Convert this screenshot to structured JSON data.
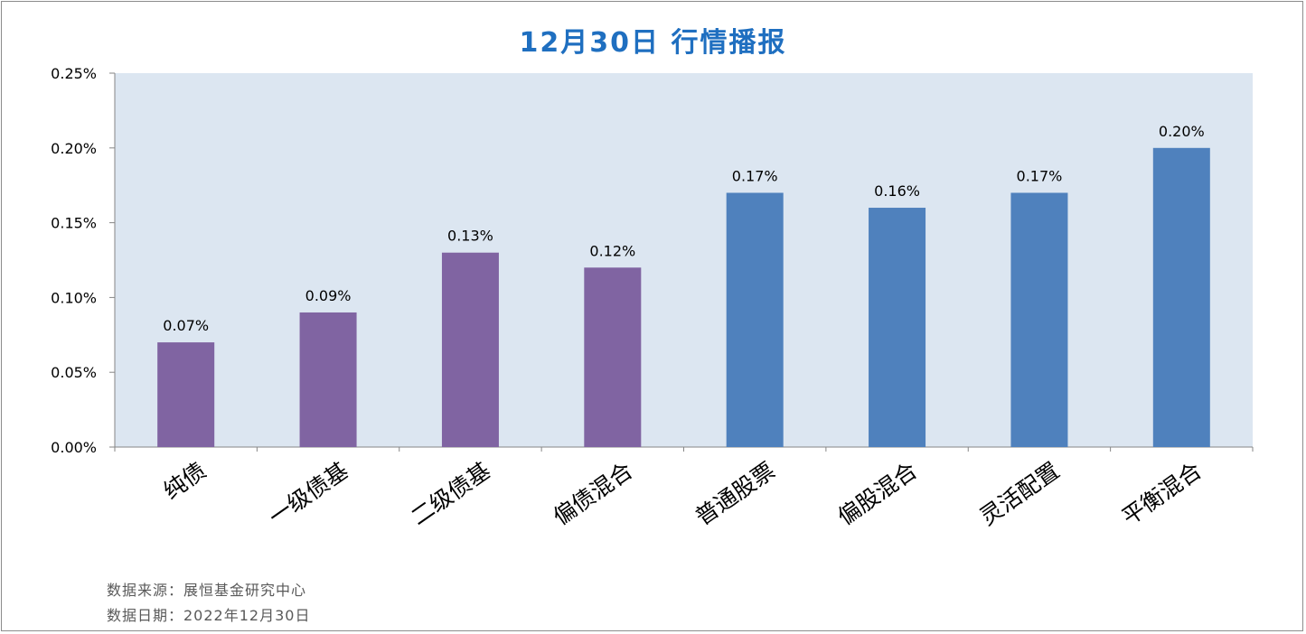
{
  "title": "12月30日  行情播报",
  "source_line": "数据来源：展恒基金研究中心",
  "date_line": "数据日期：2022年12月30日",
  "colors": {
    "plot_bg": "#dce6f1",
    "bond": "#8064a2",
    "equity": "#4f81bd",
    "title": "#1f6fc0"
  },
  "chart_data": {
    "type": "bar",
    "title": "12月30日  行情播报",
    "xlabel": "",
    "ylabel": "",
    "ylim": [
      0,
      0.25
    ],
    "y_ticks": [
      "0.00%",
      "0.05%",
      "0.10%",
      "0.15%",
      "0.20%",
      "0.25%"
    ],
    "grid": false,
    "categories": [
      "纯债",
      "一级债基",
      "二级债基",
      "偏债混合",
      "普通股票",
      "偏股混合",
      "灵活配置",
      "平衡混合"
    ],
    "values": [
      0.07,
      0.09,
      0.13,
      0.12,
      0.17,
      0.16,
      0.17,
      0.2
    ],
    "value_labels": [
      "0.07%",
      "0.09%",
      "0.13%",
      "0.12%",
      "0.17%",
      "0.16%",
      "0.17%",
      "0.20%"
    ],
    "bar_colors": [
      "#8064a2",
      "#8064a2",
      "#8064a2",
      "#8064a2",
      "#4f81bd",
      "#4f81bd",
      "#4f81bd",
      "#4f81bd"
    ]
  }
}
